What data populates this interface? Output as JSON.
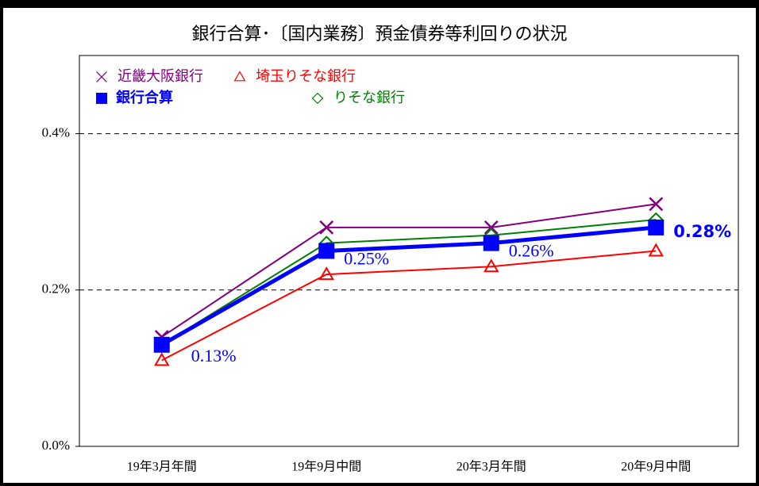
{
  "chart_data": {
    "type": "line",
    "title": "銀行合算･〔国内業務〕預金債券等利回りの状況",
    "categories": [
      "19年3月年間",
      "19年9月中間",
      "20年3月年間",
      "20年9月中間"
    ],
    "ylim": [
      0,
      0.5
    ],
    "yticks": [
      {
        "value": 0,
        "label": "0.0%"
      },
      {
        "value": 0.2,
        "label": "0.2%"
      },
      {
        "value": 0.4,
        "label": "0.4%"
      }
    ],
    "grid": true,
    "series": [
      {
        "name": "近畿大阪銀行",
        "color": "#800080",
        "marker": "x",
        "values": [
          0.14,
          0.28,
          0.28,
          0.31
        ]
      },
      {
        "name": "埼玉りそな銀行",
        "color": "#ff0000",
        "marker": "triangle",
        "values": [
          0.11,
          0.22,
          0.23,
          0.25
        ]
      },
      {
        "name": "銀行合算",
        "color": "#0000ff",
        "marker": "square",
        "values": [
          0.13,
          0.25,
          0.26,
          0.28
        ],
        "value_labels": [
          "0.13%",
          "0.25%",
          "0.26%",
          "0.28%"
        ]
      },
      {
        "name": "りそな銀行",
        "color": "#008000",
        "marker": "diamond",
        "values": [
          0.13,
          0.26,
          0.27,
          0.29
        ]
      }
    ]
  }
}
